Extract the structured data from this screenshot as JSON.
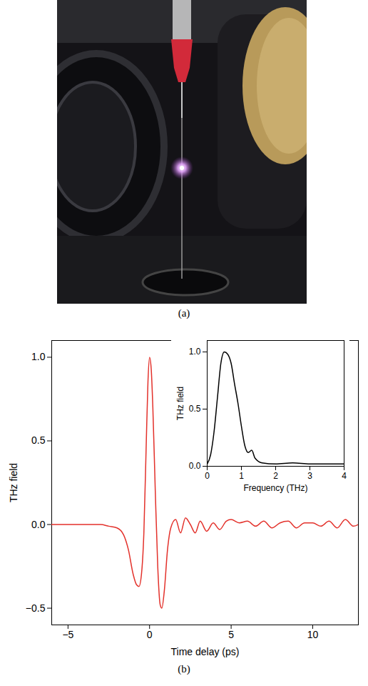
{
  "photo": {
    "panel_label": "(a)"
  },
  "chart_data": [
    {
      "type": "line",
      "panel_label": "(b)",
      "x_label": "Time delay (ps)",
      "y_label": "THz field",
      "xlim": [
        -6,
        12.8
      ],
      "ylim": [
        -0.6,
        1.1
      ],
      "xticks": [
        -5,
        0,
        5,
        10
      ],
      "yticks": [
        -0.5,
        {
          "value": 0,
          "label": "0.0"
        },
        0.5,
        {
          "value": 1,
          "label": "1.0"
        }
      ],
      "series": [
        {
          "name": "THz field",
          "color": "#e3312b",
          "x": [
            -6,
            -4,
            -3,
            -2.5,
            -2,
            -1.6,
            -1.3,
            -1.0,
            -0.8,
            -0.65,
            -0.5,
            -0.35,
            -0.2,
            -0.1,
            0,
            0.1,
            0.2,
            0.35,
            0.5,
            0.65,
            0.75,
            0.9,
            1.1,
            1.3,
            1.6,
            1.9,
            2.2,
            2.5,
            2.8,
            3.1,
            3.5,
            3.9,
            4.3,
            4.7,
            5.0,
            5.5,
            6.0,
            6.5,
            7.0,
            7.5,
            8.0,
            8.5,
            9.0,
            9.5,
            10.0,
            10.5,
            11.0,
            11.5,
            12.0,
            12.5,
            12.8
          ],
          "values": [
            0,
            0,
            0,
            -0.01,
            -0.02,
            -0.06,
            -0.15,
            -0.3,
            -0.36,
            -0.37,
            -0.3,
            -0.05,
            0.5,
            0.85,
            1.0,
            0.93,
            0.7,
            0.2,
            -0.25,
            -0.48,
            -0.5,
            -0.4,
            -0.15,
            -0.02,
            0.03,
            -0.05,
            0.04,
            0.0,
            -0.05,
            0.02,
            -0.04,
            0.01,
            -0.03,
            0.02,
            0.03,
            0.01,
            0.02,
            -0.01,
            0.02,
            -0.02,
            0.01,
            0.02,
            -0.02,
            0.01,
            0.01,
            -0.01,
            0.02,
            -0.02,
            0.03,
            -0.01,
            0.0
          ]
        }
      ]
    },
    {
      "type": "line",
      "x_label": "Frequency (THz)",
      "y_label": "THz field",
      "xlim": [
        0,
        4
      ],
      "ylim": [
        0,
        1.1
      ],
      "xticks": [
        0,
        1,
        2,
        3,
        4
      ],
      "yticks": [
        {
          "value": 0,
          "label": "0.0"
        },
        0.5,
        {
          "value": 1,
          "label": "1.0"
        }
      ],
      "series": [
        {
          "name": "THz field",
          "color": "#000000",
          "x": [
            0,
            0.1,
            0.2,
            0.3,
            0.4,
            0.5,
            0.6,
            0.7,
            0.8,
            0.9,
            1.0,
            1.1,
            1.2,
            1.3,
            1.4,
            1.6,
            2.0,
            2.5,
            3.0,
            3.5,
            4.0
          ],
          "values": [
            0.02,
            0.1,
            0.3,
            0.6,
            0.9,
            1.0,
            0.98,
            0.9,
            0.72,
            0.55,
            0.35,
            0.18,
            0.12,
            0.14,
            0.07,
            0.03,
            0.02,
            0.03,
            0.02,
            0.02,
            0.02
          ]
        }
      ]
    }
  ]
}
